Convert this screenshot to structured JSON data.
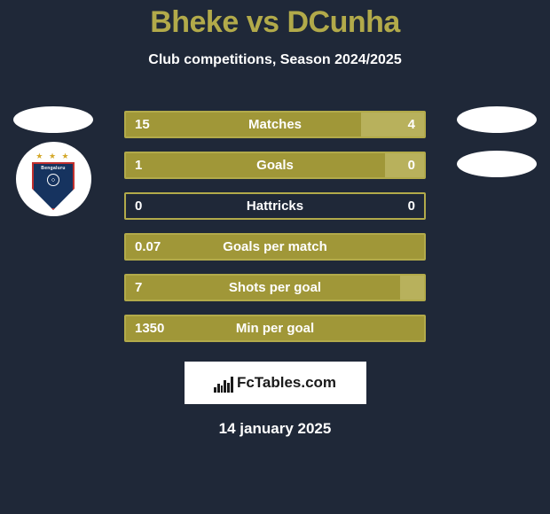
{
  "colors": {
    "background": "#1f2838",
    "accent": "#b2aa4a",
    "accent_dark": "#a09738",
    "white": "#ffffff",
    "bar_text": "#ffffff"
  },
  "title": "Bheke vs DCunha",
  "subtitle": "Club competitions, Season 2024/2025",
  "left_player": {
    "badge": "Bengaluru",
    "badge_colors": {
      "shield": "#16335f",
      "border": "#c2302e",
      "stars": "#d4a82a"
    }
  },
  "right_player": {
    "badge": null
  },
  "bars": [
    {
      "label": "Matches",
      "left": "15",
      "right": "4",
      "left_frac": 0.79,
      "right_frac": 0.21
    },
    {
      "label": "Goals",
      "left": "1",
      "right": "0",
      "left_frac": 1.0,
      "right_frac": 0.13
    },
    {
      "label": "Hattricks",
      "left": "0",
      "right": "0",
      "left_frac": 0.0,
      "right_frac": 0.0
    },
    {
      "label": "Goals per match",
      "left": "0.07",
      "right": "",
      "left_frac": 1.0,
      "right_frac": 0.0
    },
    {
      "label": "Shots per goal",
      "left": "7",
      "right": "",
      "left_frac": 1.0,
      "right_frac": 0.08
    },
    {
      "label": "Min per goal",
      "left": "1350",
      "right": "",
      "left_frac": 1.0,
      "right_frac": 0.0
    }
  ],
  "bar_style": {
    "border_color": "#b2aa4a",
    "left_fill": "#a09738",
    "right_fill": "#b8b15c",
    "height": 31,
    "border_width": 2.5,
    "font_size": 15
  },
  "footer": {
    "brand": "FcTables.com",
    "logo_bar_heights": [
      6,
      10,
      8,
      14,
      11,
      18
    ]
  },
  "date": "14 january 2025"
}
